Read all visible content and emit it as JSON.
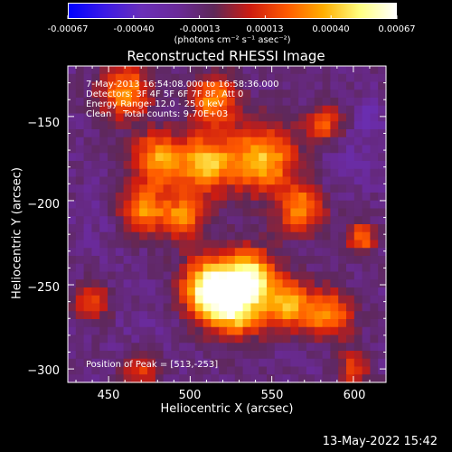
{
  "colors": {
    "background": "#000000",
    "foreground": "#ffffff",
    "colormap": [
      "#0000ff",
      "#3c1ae6",
      "#6a2fb8",
      "#6a2a98",
      "#5e2858",
      "#ce1c10",
      "#ff5a00",
      "#ffae00",
      "#ffff80",
      "#ffffff"
    ]
  },
  "colorbar": {
    "tick_labels": [
      "-0.00067",
      "-0.00040",
      "-0.00013",
      "0.00013",
      "0.00040",
      "0.00067"
    ],
    "units": "(photons cm⁻² s⁻¹ asec⁻²)",
    "range": [
      -0.00067,
      0.00067
    ]
  },
  "chart_data": {
    "type": "heatmap",
    "title": "Reconstructed RHESSI Image",
    "xlabel": "Heliocentric X (arcsec)",
    "ylabel": "Heliocentric Y (arcsec)",
    "xlim": [
      425,
      620
    ],
    "ylim": [
      -308,
      -120
    ],
    "x_ticks": [
      450,
      500,
      550,
      600
    ],
    "y_ticks": [
      -150,
      -200,
      -250,
      -300
    ],
    "grid_size": [
      40,
      40
    ],
    "peak": [
      513,
      -253
    ],
    "sources": [
      {
        "x": 513,
        "y": -252,
        "value": 0.00067,
        "sigma": 12
      },
      {
        "x": 537,
        "y": -245,
        "value": 0.00048,
        "sigma": 11
      },
      {
        "x": 528,
        "y": -265,
        "value": 0.0004,
        "sigma": 12
      },
      {
        "x": 560,
        "y": -262,
        "value": 0.00038,
        "sigma": 10
      },
      {
        "x": 585,
        "y": -268,
        "value": 0.0003,
        "sigma": 10
      },
      {
        "x": 545,
        "y": -175,
        "value": 0.0004,
        "sigma": 14
      },
      {
        "x": 510,
        "y": -178,
        "value": 0.0004,
        "sigma": 12
      },
      {
        "x": 480,
        "y": -175,
        "value": 0.00034,
        "sigma": 11
      },
      {
        "x": 460,
        "y": -135,
        "value": 0.00032,
        "sigma": 11
      },
      {
        "x": 515,
        "y": -140,
        "value": 0.00032,
        "sigma": 10
      },
      {
        "x": 470,
        "y": -205,
        "value": 0.0003,
        "sigma": 10
      },
      {
        "x": 568,
        "y": -205,
        "value": 0.0003,
        "sigma": 10
      },
      {
        "x": 495,
        "y": -210,
        "value": 0.00028,
        "sigma": 10
      },
      {
        "x": 605,
        "y": -222,
        "value": 0.0003,
        "sigma": 6
      },
      {
        "x": 582,
        "y": -155,
        "value": 0.0002,
        "sigma": 8
      },
      {
        "x": 440,
        "y": -260,
        "value": 0.00016,
        "sigma": 8
      },
      {
        "x": 470,
        "y": -300,
        "value": 0.00015,
        "sigma": 8
      },
      {
        "x": 600,
        "y": -300,
        "value": 0.00018,
        "sigma": 7
      },
      {
        "x": 450,
        "y": -210,
        "value": -0.00022,
        "sigma": 12
      },
      {
        "x": 600,
        "y": -175,
        "value": -0.00025,
        "sigma": 13
      },
      {
        "x": 450,
        "y": -255,
        "value": -0.00018,
        "sigma": 12
      },
      {
        "x": 580,
        "y": -295,
        "value": -0.00018,
        "sigma": 14
      },
      {
        "x": 470,
        "y": -280,
        "value": -0.0002,
        "sigma": 12
      },
      {
        "x": 540,
        "y": -215,
        "value": -0.00012,
        "sigma": 10
      },
      {
        "x": 610,
        "y": -150,
        "value": -0.00035,
        "sigma": 6
      }
    ]
  },
  "annotations": {
    "time_range": "7-May-2013 16:54:08.000 to 16:58:36.000",
    "detectors": "Detectors: 3F 4F 5F 6F 7F 8F, Att 0",
    "energy": "Energy Range: 12.0 - 25.0 keV",
    "clean": "Clean    Total counts: 9.70E+03",
    "peak": "Position of Peak = [513,-253]"
  },
  "footer": {
    "date": "13-May-2022 15:42"
  }
}
